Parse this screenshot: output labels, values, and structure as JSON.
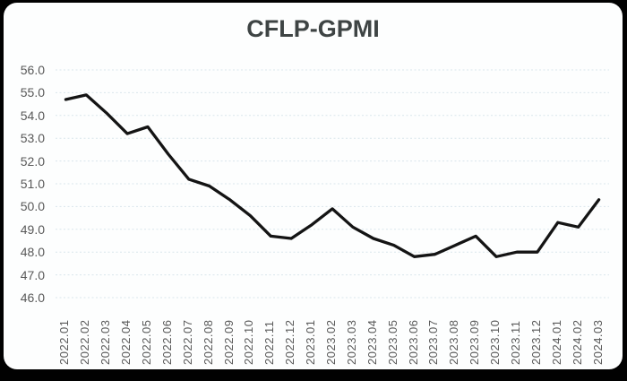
{
  "frame": {
    "outer_bg": "#010101",
    "card_bg": "#fdfefe"
  },
  "chart_data": {
    "type": "line",
    "title": "CFLP-GPMI",
    "categories": [
      "2022.01",
      "2022.02",
      "2022.03",
      "2022.04",
      "2022.05",
      "2022.06",
      "2022.07",
      "2022.08",
      "2022.09",
      "2022.10",
      "2022.11",
      "2022.12",
      "2023.01",
      "2023.02",
      "2023.03",
      "2023.04",
      "2023.05",
      "2023.06",
      "2023.07",
      "2023.08",
      "2023.09",
      "2023.10",
      "2023.11",
      "2023.12",
      "2024.01",
      "2024.02",
      "2024.03"
    ],
    "series": [
      {
        "name": "CFLP-GPMI",
        "values": [
          54.7,
          54.9,
          54.1,
          53.2,
          53.5,
          52.3,
          51.2,
          50.9,
          50.3,
          49.6,
          48.7,
          48.6,
          49.2,
          49.9,
          49.1,
          48.6,
          48.3,
          47.8,
          47.9,
          48.3,
          48.7,
          47.8,
          48.0,
          48.0,
          49.3,
          49.1,
          50.3
        ]
      }
    ],
    "ylim": [
      46.0,
      56.0
    ],
    "yticks": [
      "56.0",
      "55.0",
      "54.0",
      "53.0",
      "52.0",
      "51.0",
      "50.0",
      "49.0",
      "48.0",
      "47.0",
      "46.0"
    ],
    "xlabel": "",
    "ylabel": "",
    "legend": "none",
    "grid": "horizontal dashed gridlines only, no axis lines, no markers",
    "x_label_rotation": "vertical, read bottom-to-top",
    "colors": {
      "line": "#141414",
      "tick_label": "#595959",
      "gridline": "#d9e5ec",
      "title": "#3e4444"
    }
  }
}
